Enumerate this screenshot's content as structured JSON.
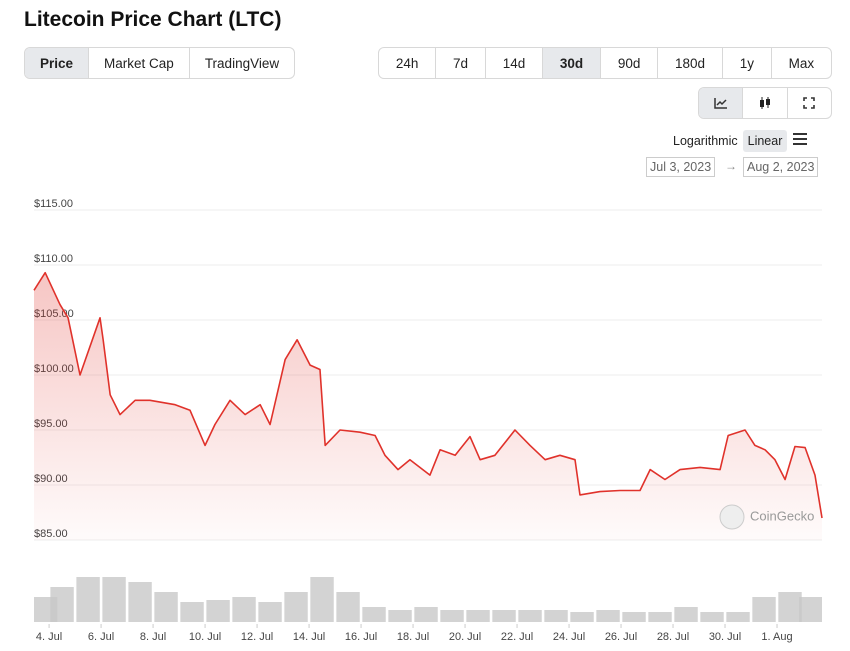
{
  "header": {
    "title": "Litecoin Price Chart (LTC)"
  },
  "tabs": {
    "items": [
      "Price",
      "Market Cap",
      "TradingView"
    ],
    "selected": 0
  },
  "ranges": {
    "items": [
      "24h",
      "7d",
      "14d",
      "30d",
      "90d",
      "180d",
      "1y",
      "Max"
    ],
    "selected": 3
  },
  "scale": {
    "items": [
      "Logarithmic",
      "Linear"
    ],
    "selected": 1
  },
  "date_range": {
    "from": "Jul 3, 2023",
    "to": "Aug 2, 2023"
  },
  "watermark": "CoinGecko",
  "chart_data": [
    {
      "type": "line",
      "color": "#e0322b",
      "x": [
        3.42,
        3.85,
        4.42,
        4.73,
        5.19,
        5.96,
        6.08,
        6.35,
        6.73,
        7.31,
        7.88,
        8.85,
        9.42,
        10,
        10.38,
        10.96,
        11.54,
        12.12,
        12.5,
        13.08,
        13.54,
        14.04,
        14.42,
        14.62,
        15.19,
        15.96,
        16.54,
        16.92,
        17.42,
        17.88,
        18.65,
        19.04,
        19.62,
        20.19,
        20.58,
        21.15,
        21.92,
        22.5,
        23.08,
        23.65,
        24.23,
        24.42,
        25.19,
        25.96,
        26.73,
        27.12,
        27.69,
        28.27,
        29.04,
        29.81,
        30.12,
        30.77,
        31.15,
        31.54,
        31.92,
        32.31,
        32.69,
        33.08,
        33.46,
        33.73
      ],
      "values": [
        107.7,
        109.3,
        106.4,
        105.2,
        100,
        105.2,
        103.2,
        98.2,
        96.4,
        97.7,
        97.7,
        97.3,
        96.8,
        93.6,
        95.5,
        97.7,
        96.4,
        97.3,
        95.5,
        101.4,
        103.2,
        100.9,
        100.5,
        93.6,
        95,
        94.8,
        94.5,
        92.7,
        91.4,
        92.3,
        90.9,
        93.2,
        92.7,
        94.4,
        92.3,
        92.7,
        95,
        93.6,
        92.3,
        92.7,
        92.3,
        89.1,
        89.4,
        89.5,
        89.5,
        91.4,
        90.5,
        91.4,
        91.6,
        91.4,
        94.5,
        95,
        93.6,
        93.2,
        92.3,
        90.5,
        93.5,
        93.4,
        90.9,
        87
      ],
      "xlim": [
        3.42,
        33.73
      ],
      "xticks": [
        {
          "value": 4,
          "label": "4. Jul"
        },
        {
          "value": 6,
          "label": "6. Jul"
        },
        {
          "value": 8,
          "label": "8. Jul"
        },
        {
          "value": 10,
          "label": "10. Jul"
        },
        {
          "value": 12,
          "label": "12. Jul"
        },
        {
          "value": 14,
          "label": "14. Jul"
        },
        {
          "value": 16,
          "label": "16. Jul"
        },
        {
          "value": 18,
          "label": "18. Jul"
        },
        {
          "value": 20,
          "label": "20. Jul"
        },
        {
          "value": 22,
          "label": "22. Jul"
        },
        {
          "value": 24,
          "label": "24. Jul"
        },
        {
          "value": 26,
          "label": "26. Jul"
        },
        {
          "value": 28,
          "label": "28. Jul"
        },
        {
          "value": 30,
          "label": "30. Jul"
        },
        {
          "value": 32,
          "label": "1. Aug"
        }
      ],
      "ylim": [
        85,
        115
      ],
      "yticks": [
        {
          "value": 85,
          "label": "$85.00"
        },
        {
          "value": 90,
          "label": "$90.00"
        },
        {
          "value": 95,
          "label": "$95.00"
        },
        {
          "value": 100,
          "label": "$100.00"
        },
        {
          "value": 105,
          "label": "$105.00"
        },
        {
          "value": 110,
          "label": "$110.00"
        },
        {
          "value": 115,
          "label": "$115.00"
        }
      ],
      "grid": true
    },
    {
      "type": "bar",
      "color": "#c8c8c8",
      "x": [
        3.5,
        4.5,
        5.5,
        6.5,
        7.5,
        8.5,
        9.5,
        10.5,
        11.5,
        12.5,
        13.5,
        14.5,
        15.5,
        16.5,
        17.5,
        18.5,
        19.5,
        20.5,
        21.5,
        22.5,
        23.5,
        24.5,
        25.5,
        26.5,
        27.5,
        28.5,
        29.5,
        30.5,
        31.5,
        32.5,
        33.3
      ],
      "values": [
        25,
        35,
        45,
        45,
        40,
        30,
        20,
        22,
        25,
        20,
        30,
        45,
        30,
        15,
        12,
        15,
        12,
        12,
        12,
        12,
        12,
        10,
        12,
        10,
        10,
        15,
        10,
        10,
        25,
        30,
        25
      ],
      "xlim": [
        3.42,
        33.73
      ],
      "ylim": [
        0,
        50
      ]
    }
  ]
}
